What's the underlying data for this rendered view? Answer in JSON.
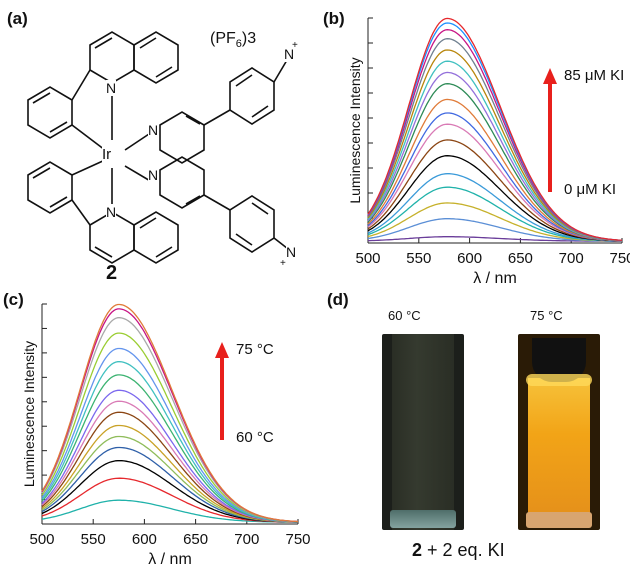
{
  "panels": {
    "a": {
      "label": "(a)",
      "counterion": "(PF6)3",
      "counterion_main": "(PF",
      "counterion_sub": "6",
      "counterion_tail": ")3",
      "compound_number": "2",
      "metal": "Ir",
      "n": "N",
      "plus": "+"
    },
    "b": {
      "label": "(b)",
      "arrow_top": "85 μM KI",
      "arrow_bottom": "0 μM KI"
    },
    "c": {
      "label": "(c)",
      "arrow_top": "75 °C",
      "arrow_bottom": "60 °C"
    },
    "d": {
      "label": "(d)",
      "left_temp": "60 °C",
      "right_temp": "75 °C",
      "caption_bold": "2",
      "caption_rest": " + 2 eq. KI"
    }
  },
  "colors": {
    "arrow": "#e8201c",
    "vial_dark": "#2a2e25",
    "vial_glow": "#f2a417"
  },
  "chart_data": [
    {
      "type": "line",
      "panel": "b",
      "xlabel": "λ / nm",
      "ylabel": "Luminescence Intensity",
      "x_ticks": [
        500,
        550,
        600,
        650,
        700,
        750
      ],
      "xlim": [
        500,
        750
      ],
      "ylim": [
        0,
        1
      ],
      "peak_wavelength": 578,
      "series_peaks": [
        0.02,
        0.1,
        0.17,
        0.24,
        0.3,
        0.38,
        0.45,
        0.52,
        0.57,
        0.63,
        0.7,
        0.75,
        0.8,
        0.85,
        0.9,
        0.94,
        0.97,
        0.99
      ],
      "series_colors": [
        "#6a3d9a",
        "#5b8fd6",
        "#c6b12b",
        "#20b2aa",
        "#3a9ad9",
        "#000000",
        "#8b4513",
        "#d97ab5",
        "#4169e1",
        "#e07b39",
        "#2e8b57",
        "#9370db",
        "#40c0c0",
        "#b8860b",
        "#708090",
        "#c71585",
        "#1e90ff",
        "#e6282d"
      ]
    },
    {
      "type": "line",
      "panel": "c",
      "xlabel": "λ / nm",
      "ylabel": "Luminescence Intensity",
      "x_ticks": [
        500,
        550,
        600,
        650,
        700,
        750
      ],
      "xlim": [
        500,
        750
      ],
      "ylim": [
        0,
        1
      ],
      "peak_wavelength": 575,
      "series_peaks": [
        0.1,
        0.2,
        0.28,
        0.34,
        0.39,
        0.44,
        0.5,
        0.55,
        0.6,
        0.67,
        0.73,
        0.79,
        0.86,
        0.93,
        0.97,
        0.99
      ],
      "series_colors": [
        "#20b2aa",
        "#e6282d",
        "#000000",
        "#2e5fa8",
        "#8fbc5a",
        "#c9a227",
        "#8b4513",
        "#d97ab5",
        "#7b68ee",
        "#3cb371",
        "#40c0c0",
        "#6495ed",
        "#9acd32",
        "#a9a9a9",
        "#c71585",
        "#e07b39"
      ]
    }
  ]
}
